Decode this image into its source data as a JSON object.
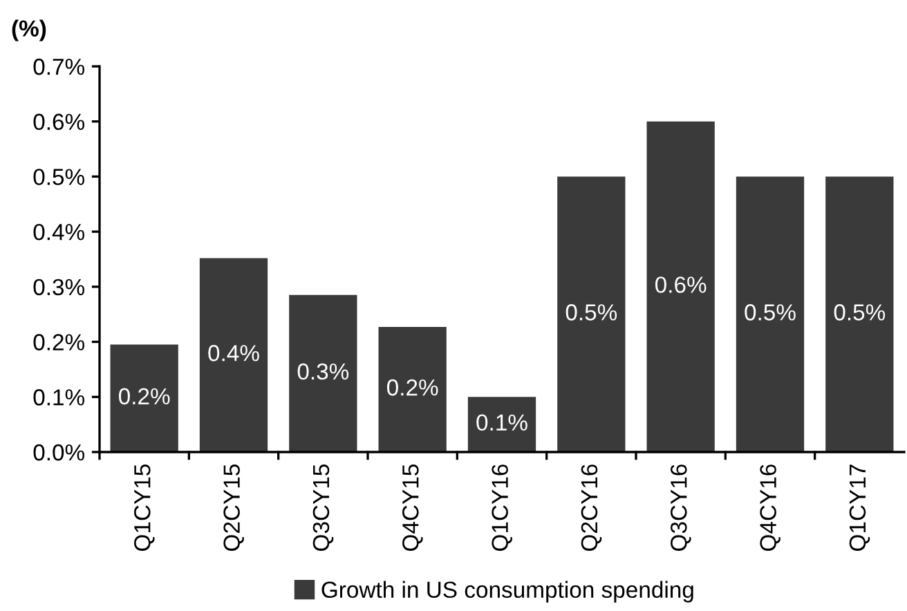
{
  "chart_data": {
    "type": "bar",
    "ylabel": "(%)",
    "categories": [
      "Q1CY15",
      "Q2CY15",
      "Q3CY15",
      "Q4CY15",
      "Q1CY16",
      "Q2CY16",
      "Q3CY16",
      "Q4CY16",
      "Q1CY17"
    ],
    "series": [
      {
        "name": "Growth in US consumption spending",
        "color": "#3a3a3a",
        "values": [
          0.195,
          0.352,
          0.285,
          0.227,
          0.1,
          0.5,
          0.6,
          0.5,
          0.5
        ]
      }
    ],
    "value_labels": [
      "0.2%",
      "0.4%",
      "0.3%",
      "0.2%",
      "0.1%",
      "0.5%",
      "0.6%",
      "0.5%",
      "0.5%"
    ],
    "ylim": [
      0,
      0.7
    ],
    "yticks": [
      {
        "value": 0,
        "label": "0.0%"
      },
      {
        "value": 0.1,
        "label": "0.1%"
      },
      {
        "value": 0.2,
        "label": "0.2%"
      },
      {
        "value": 0.3,
        "label": "0.3%"
      },
      {
        "value": 0.4,
        "label": "0.4%"
      },
      {
        "value": 0.5,
        "label": "0.5%"
      },
      {
        "value": 0.6,
        "label": "0.6%"
      },
      {
        "value": 0.7,
        "label": "0.7%"
      }
    ],
    "grid": false,
    "legend": "bottom"
  }
}
